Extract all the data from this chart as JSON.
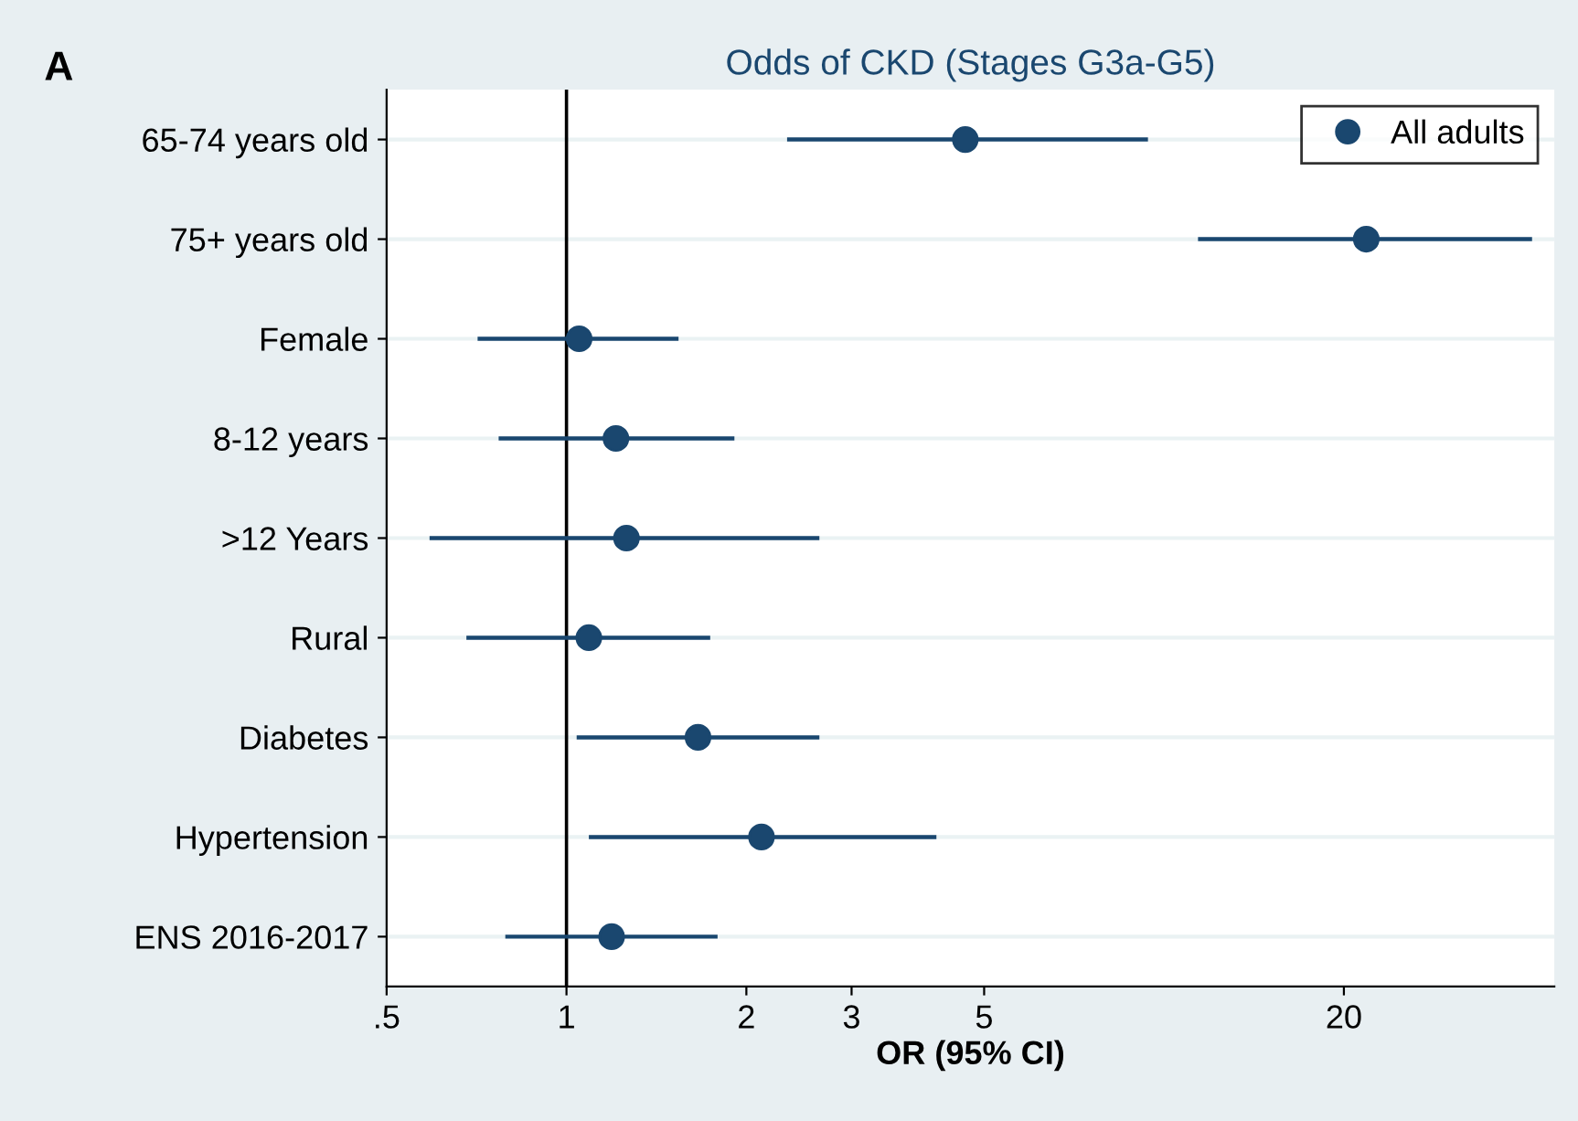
{
  "chart_data": {
    "type": "scatter",
    "orientation": "horizontal",
    "title": "Odds of CKD (Stages G3a-G5)",
    "xlabel": "OR (95% CI)",
    "categories": [
      "65-74 years old",
      "75+ years old",
      "Female",
      "8-12 years",
      ">12 Years",
      "Rural",
      "Diabetes",
      "Hypertension",
      "ENS 2016-2017"
    ],
    "series": [
      {
        "name": "All adults",
        "color": "#1a476f",
        "values": [
          4.65,
          21.8,
          1.05,
          1.21,
          1.26,
          1.09,
          1.66,
          2.12,
          1.19
        ],
        "errors": [
          [
            2.34,
            9.4
          ],
          [
            11.4,
            41.3
          ],
          [
            0.71,
            1.54
          ],
          [
            0.77,
            1.91
          ],
          [
            0.59,
            2.65
          ],
          [
            0.68,
            1.74
          ],
          [
            1.04,
            2.65
          ],
          [
            1.09,
            4.16
          ],
          [
            0.79,
            1.79
          ]
        ]
      }
    ],
    "log": "x",
    "xlim": [
      0.5,
      45
    ],
    "xticks": [
      {
        "value": 0.5,
        "label": ".5"
      },
      1,
      2,
      3,
      5,
      20
    ],
    "ref_lines": [
      {
        "axis": "x",
        "value": 1,
        "color": "#000000",
        "line_style": "solid"
      }
    ],
    "grid": "y",
    "legend": "top right",
    "marker": "circle",
    "annotations": [
      "A"
    ]
  }
}
